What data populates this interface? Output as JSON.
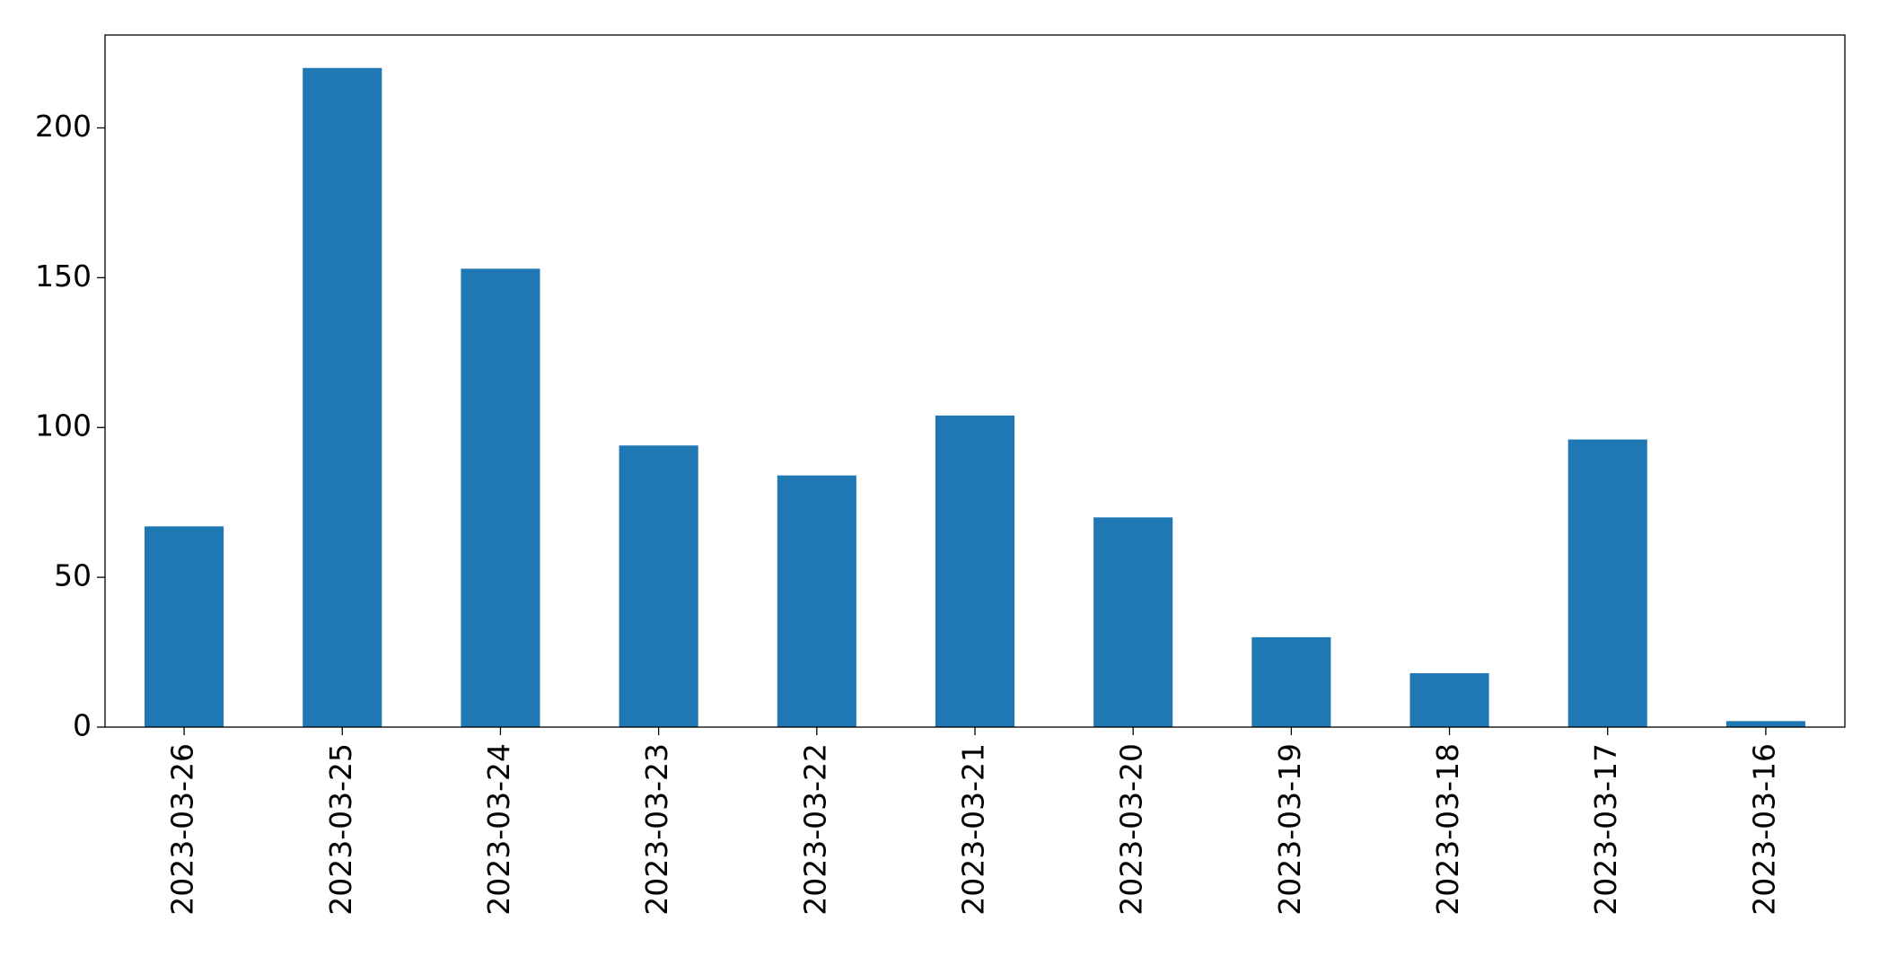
{
  "chart_data": {
    "type": "bar",
    "title": "",
    "xlabel": "",
    "ylabel": "",
    "categories": [
      "2023-03-26",
      "2023-03-25",
      "2023-03-24",
      "2023-03-23",
      "2023-03-22",
      "2023-03-21",
      "2023-03-20",
      "2023-03-19",
      "2023-03-18",
      "2023-03-17",
      "2023-03-16"
    ],
    "values": [
      67,
      220,
      153,
      94,
      84,
      104,
      70,
      30,
      18,
      96,
      2
    ],
    "ylim": [
      0,
      231
    ],
    "yticks": [
      0,
      50,
      100,
      150,
      200
    ],
    "bar_color": "#1f77b4",
    "grid": false,
    "legend": "none"
  }
}
